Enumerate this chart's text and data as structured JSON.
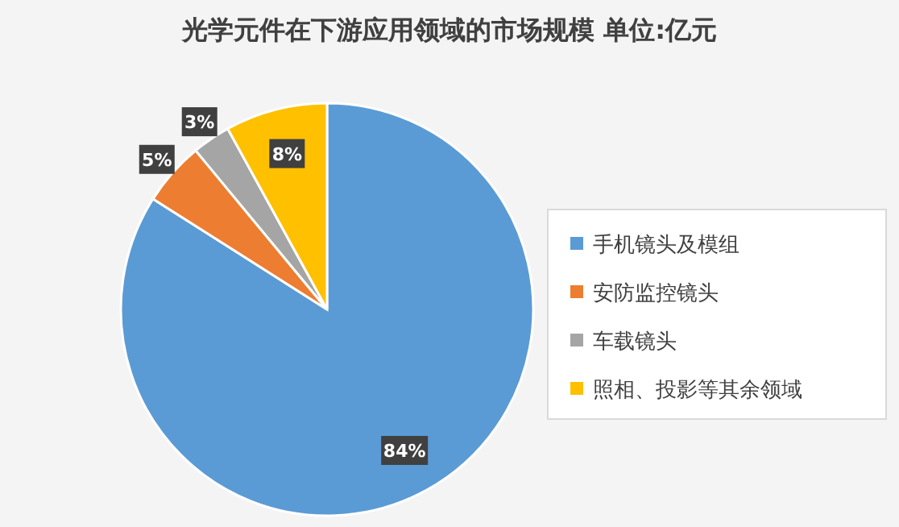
{
  "chart_data": {
    "type": "pie",
    "title": "光学元件在下游应用领域的市场规模    单位:亿元",
    "categories": [
      "手机镜头及模组",
      "安防监控镜头",
      "车载镜头",
      "照相、投影等其余领域"
    ],
    "values": [
      84,
      5,
      3,
      8
    ],
    "colors": [
      "#5b9bd5",
      "#ed7d31",
      "#a5a5a5",
      "#ffc000"
    ],
    "value_labels": [
      "84%",
      "5%",
      "3%",
      "8%"
    ],
    "legend": "right"
  }
}
